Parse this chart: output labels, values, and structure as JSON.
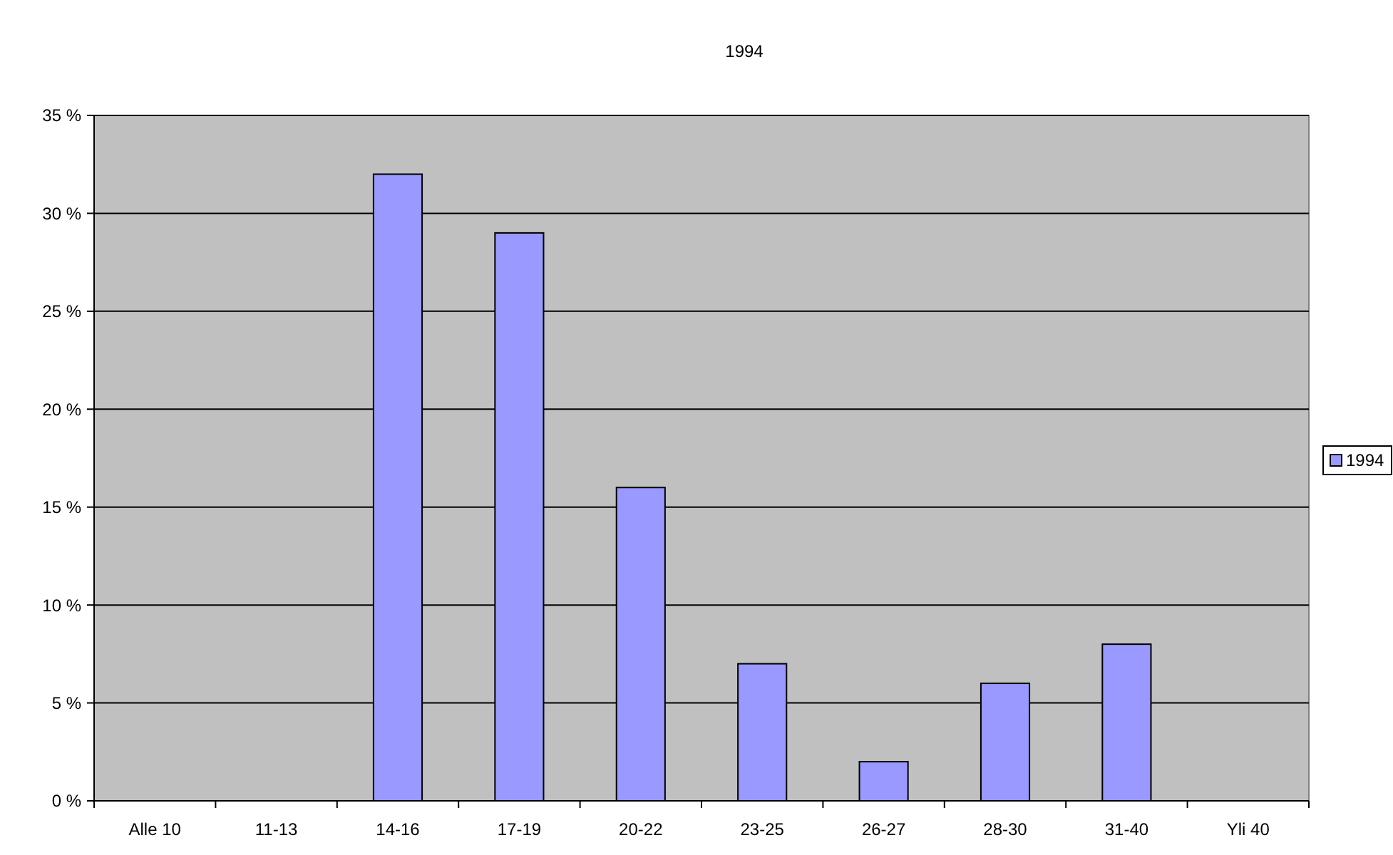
{
  "chart_data": {
    "type": "bar",
    "title": "1994",
    "categories": [
      "Alle 10",
      "11-13",
      "14-16",
      "17-19",
      "20-22",
      "23-25",
      "26-27",
      "28-30",
      "31-40",
      "Yli 40"
    ],
    "series": [
      {
        "name": "1994",
        "color": "#9999ff",
        "values": [
          0,
          0,
          32,
          29,
          16,
          7,
          2,
          6,
          8,
          0
        ]
      }
    ],
    "ylim": [
      0,
      35
    ],
    "yticks": [
      {
        "value": 0,
        "label": "0 %"
      },
      {
        "value": 5,
        "label": "5 %"
      },
      {
        "value": 10,
        "label": "10 %"
      },
      {
        "value": 15,
        "label": "15 %"
      },
      {
        "value": 20,
        "label": "20 %"
      },
      {
        "value": 25,
        "label": "25 %"
      },
      {
        "value": 30,
        "label": "30 %"
      },
      {
        "value": 35,
        "label": "35 %"
      }
    ],
    "grid": "y",
    "legend": "right"
  }
}
